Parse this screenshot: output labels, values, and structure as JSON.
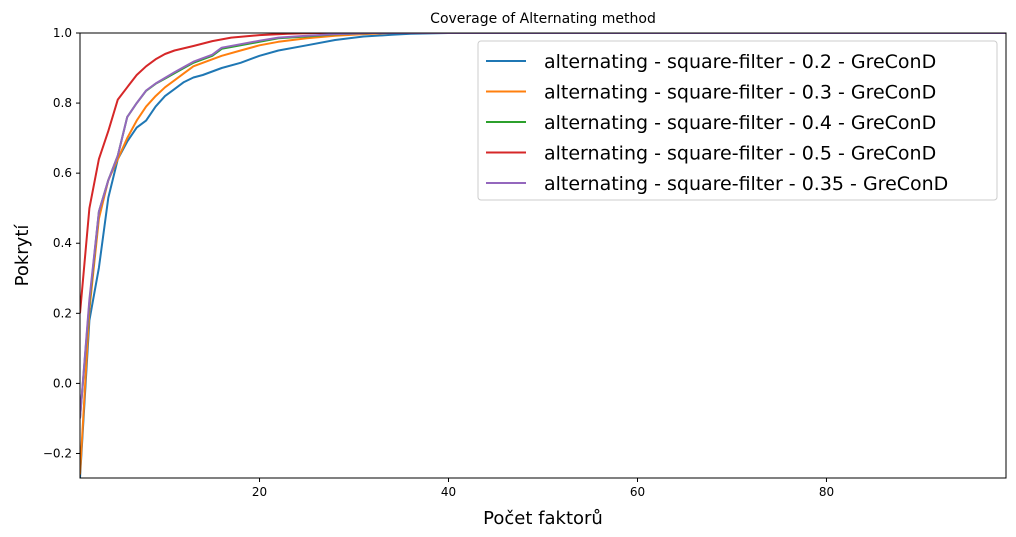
{
  "chart_data": {
    "type": "line",
    "title": "Coverage of Alternating method",
    "xlabel": "Počet faktorů",
    "ylabel": "Pokrytí",
    "xlim": [
      1,
      99
    ],
    "ylim": [
      -0.27,
      1.0
    ],
    "xticks": [
      20,
      40,
      60,
      80
    ],
    "yticks": [
      -0.2,
      0.0,
      0.2,
      0.4,
      0.6,
      0.8,
      1.0
    ],
    "ytick_labels": [
      "−0.2",
      "0.0",
      "0.2",
      "0.4",
      "0.6",
      "0.8",
      "1.0"
    ],
    "grid": false,
    "legend_position": "top-right",
    "series": [
      {
        "name": "alternating - square-filter - 0.2 - GreConD",
        "color": "#1f77b4",
        "x": [
          1,
          2,
          3,
          4,
          5,
          6,
          7,
          8,
          9,
          10,
          11,
          12,
          13,
          14,
          16,
          18,
          20,
          22,
          25,
          28,
          31,
          34,
          36,
          40,
          99
        ],
        "y": [
          -0.27,
          0.18,
          0.33,
          0.53,
          0.64,
          0.69,
          0.73,
          0.75,
          0.79,
          0.82,
          0.84,
          0.86,
          0.873,
          0.88,
          0.9,
          0.915,
          0.935,
          0.95,
          0.965,
          0.98,
          0.99,
          0.995,
          0.998,
          1.0,
          1.0
        ]
      },
      {
        "name": "alternating - square-filter - 0.3 - GreConD",
        "color": "#ff7f0e",
        "x": [
          1,
          2,
          3,
          4,
          5,
          6,
          7,
          8,
          9,
          10,
          11,
          12,
          13,
          14,
          16,
          18,
          20,
          22,
          25,
          28,
          31,
          34,
          99
        ],
        "y": [
          -0.26,
          0.21,
          0.47,
          0.58,
          0.64,
          0.7,
          0.75,
          0.79,
          0.82,
          0.845,
          0.865,
          0.885,
          0.905,
          0.915,
          0.935,
          0.95,
          0.965,
          0.975,
          0.985,
          0.992,
          0.997,
          1.0,
          1.0
        ]
      },
      {
        "name": "alternating - square-filter - 0.4 - GreConD",
        "color": "#2ca02c",
        "x": [
          1,
          2,
          3,
          4,
          5,
          6,
          7,
          8,
          9,
          10,
          11,
          12,
          13,
          14,
          15,
          16,
          18,
          20,
          22,
          25,
          28,
          32,
          99
        ],
        "y": [
          -0.1,
          0.23,
          0.49,
          0.58,
          0.65,
          0.76,
          0.8,
          0.835,
          0.855,
          0.87,
          0.885,
          0.9,
          0.915,
          0.925,
          0.935,
          0.955,
          0.965,
          0.975,
          0.985,
          0.99,
          0.996,
          1.0,
          1.0
        ]
      },
      {
        "name": "alternating - square-filter - 0.5 - GreConD",
        "color": "#d62728",
        "x": [
          1,
          2,
          3,
          4,
          5,
          6,
          7,
          8,
          9,
          10,
          11,
          13,
          15,
          17,
          20,
          23,
          26,
          30,
          99
        ],
        "y": [
          0.2,
          0.5,
          0.64,
          0.72,
          0.81,
          0.845,
          0.88,
          0.905,
          0.925,
          0.94,
          0.95,
          0.963,
          0.977,
          0.987,
          0.994,
          0.998,
          1.0,
          1.0,
          1.0
        ]
      },
      {
        "name": "alternating - square-filter - 0.35 - GreConD",
        "color": "#9467bd",
        "x": [
          1,
          2,
          3,
          4,
          5,
          6,
          7,
          8,
          9,
          10,
          11,
          12,
          13,
          14,
          15,
          16,
          18,
          20,
          22,
          25,
          28,
          32,
          99
        ],
        "y": [
          -0.1,
          0.24,
          0.49,
          0.58,
          0.65,
          0.76,
          0.8,
          0.836,
          0.856,
          0.872,
          0.888,
          0.903,
          0.918,
          0.928,
          0.938,
          0.958,
          0.968,
          0.978,
          0.987,
          0.992,
          0.997,
          1.0,
          1.0
        ]
      }
    ]
  }
}
